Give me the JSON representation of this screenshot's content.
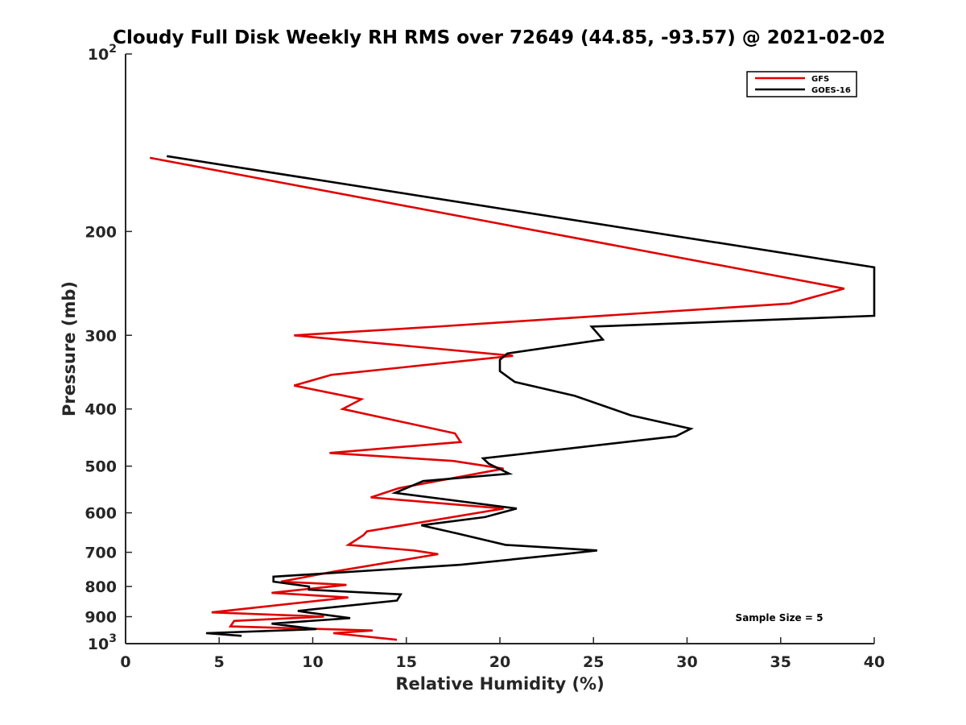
{
  "chart_data": {
    "type": "line",
    "title": "Cloudy Full Disk Weekly RH RMS over 72649 (44.85, -93.57) @ 2021-02-02",
    "xlabel": "Relative Humidity (%)",
    "ylabel": "Pressure (mb)",
    "xlim": [
      0,
      40
    ],
    "ylim": [
      100,
      1000
    ],
    "y_scale": "log",
    "y_reversed": true,
    "x_ticks": [
      0,
      5,
      10,
      15,
      20,
      25,
      30,
      35,
      40
    ],
    "x_tick_labels": [
      "0",
      "5",
      "10",
      "15",
      "20",
      "25",
      "30",
      "35",
      "40"
    ],
    "y_ticks": [
      {
        "value": 100,
        "base": "10",
        "exp": "2"
      },
      {
        "value": 200,
        "label": "200"
      },
      {
        "value": 300,
        "label": "300"
      },
      {
        "value": 400,
        "label": "400"
      },
      {
        "value": 500,
        "label": "500"
      },
      {
        "value": 600,
        "label": "600"
      },
      {
        "value": 700,
        "label": "700"
      },
      {
        "value": 800,
        "label": "800"
      },
      {
        "value": 900,
        "label": "900"
      },
      {
        "value": 1000,
        "base": "10",
        "exp": "3"
      }
    ],
    "grid": false,
    "legend_position": "top-right",
    "annotation": "Sample Size = 5",
    "series": [
      {
        "name": "GFS",
        "color": "#e00000",
        "points": [
          [
            1.3,
            150
          ],
          [
            38.4,
            250
          ],
          [
            35.5,
            265
          ],
          [
            16.6,
            290
          ],
          [
            9.0,
            300
          ],
          [
            20.7,
            325
          ],
          [
            11.0,
            350
          ],
          [
            9.0,
            365
          ],
          [
            12.6,
            385
          ],
          [
            11.6,
            400
          ],
          [
            17.6,
            440
          ],
          [
            17.9,
            455
          ],
          [
            10.9,
            475
          ],
          [
            17.5,
            490
          ],
          [
            20.2,
            505
          ],
          [
            14.6,
            545
          ],
          [
            13.1,
            565
          ],
          [
            20.2,
            590
          ],
          [
            12.9,
            645
          ],
          [
            12.7,
            655
          ],
          [
            11.9,
            680
          ],
          [
            15.4,
            695
          ],
          [
            16.7,
            705
          ],
          [
            11.1,
            755
          ],
          [
            8.3,
            785
          ],
          [
            11.8,
            795
          ],
          [
            7.8,
            820
          ],
          [
            11.9,
            835
          ],
          [
            4.6,
            885
          ],
          [
            10.6,
            900
          ],
          [
            5.8,
            915
          ],
          [
            5.6,
            935
          ],
          [
            13.2,
            950
          ],
          [
            11.1,
            960
          ],
          [
            14.5,
            985
          ]
        ]
      },
      {
        "name": "GOES-16",
        "color": "#000000",
        "points": [
          [
            2.2,
            149
          ],
          [
            40.0,
            230
          ],
          [
            40.0,
            278
          ],
          [
            24.9,
            290
          ],
          [
            25.5,
            305
          ],
          [
            20.4,
            322
          ],
          [
            20.0,
            330
          ],
          [
            20.0,
            345
          ],
          [
            20.8,
            360
          ],
          [
            24.0,
            380
          ],
          [
            27.0,
            410
          ],
          [
            30.2,
            432
          ],
          [
            29.4,
            445
          ],
          [
            19.1,
            485
          ],
          [
            19.4,
            495
          ],
          [
            20.5,
            515
          ],
          [
            15.9,
            530
          ],
          [
            14.4,
            555
          ],
          [
            20.9,
            590
          ],
          [
            19.2,
            610
          ],
          [
            15.8,
            630
          ],
          [
            17.7,
            650
          ],
          [
            20.3,
            680
          ],
          [
            25.2,
            695
          ],
          [
            23.4,
            705
          ],
          [
            17.9,
            735
          ],
          [
            7.9,
            770
          ],
          [
            7.9,
            785
          ],
          [
            9.8,
            800
          ],
          [
            9.8,
            810
          ],
          [
            14.7,
            825
          ],
          [
            14.5,
            845
          ],
          [
            9.2,
            880
          ],
          [
            9.7,
            885
          ],
          [
            12.0,
            905
          ],
          [
            7.8,
            925
          ],
          [
            10.2,
            945
          ],
          [
            4.3,
            960
          ],
          [
            6.2,
            970
          ]
        ]
      }
    ]
  }
}
